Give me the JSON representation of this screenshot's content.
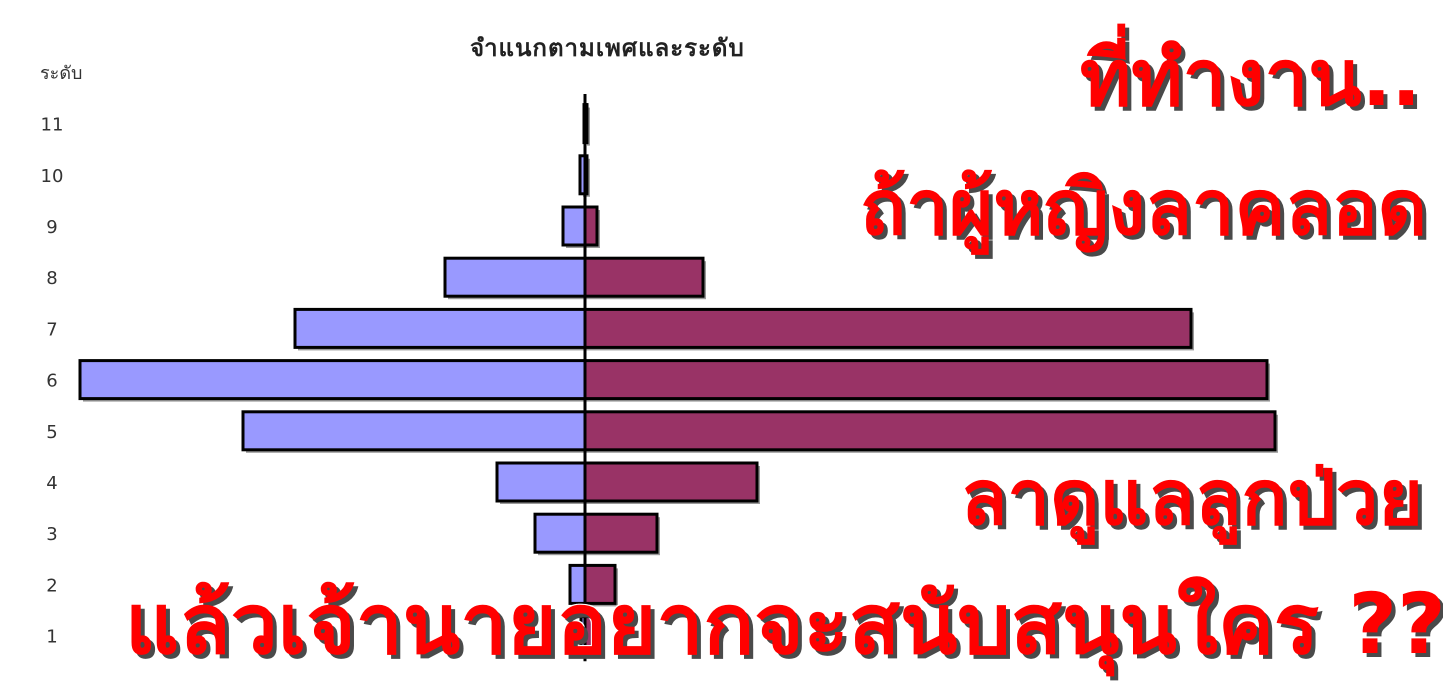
{
  "chart_data": {
    "type": "bar",
    "title": "จำแนกตามเพศและระดับ",
    "ylabel": "ระดับ",
    "categories": [
      "1",
      "2",
      "3",
      "4",
      "5",
      "6",
      "7",
      "8",
      "9",
      "10",
      "11"
    ],
    "series": [
      {
        "name": "",
        "color": "#9999ff",
        "values": [
          -4,
          -15,
          -50,
          -88,
          -342,
          -505,
          -290,
          -140,
          -22,
          -5,
          -1
        ]
      },
      {
        "name": "",
        "color": "#993366",
        "values": [
          10,
          30,
          72,
          172,
          690,
          682,
          606,
          118,
          12,
          2,
          1
        ]
      }
    ],
    "orientation": "horizontal",
    "grid": false
  },
  "overlay": {
    "line1": "ที่ทำงาน..",
    "line2": "ถ้าผู้หญิงลาคลอด",
    "line3": "ลาดูแลลูกป่วย",
    "line4": "แล้วเจ้านายอยากจะสนับสนุนใคร ???"
  }
}
